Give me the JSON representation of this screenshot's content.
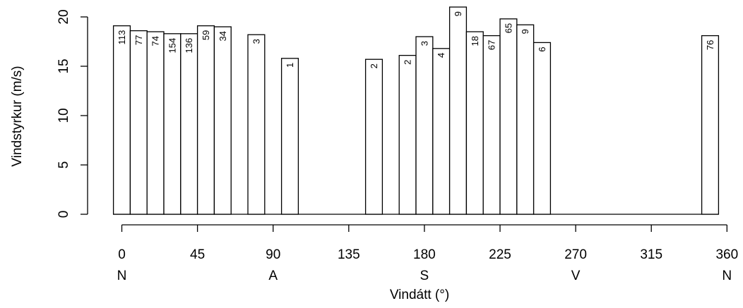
{
  "chart_data": {
    "type": "bar",
    "xlabel": "Vindátt (°)",
    "ylabel": "Vindstyrkur (m/s)",
    "xlim": [
      0,
      360
    ],
    "ylim": [
      0,
      20
    ],
    "x_ticks": [
      0,
      45,
      90,
      135,
      180,
      225,
      270,
      315,
      360
    ],
    "y_ticks": [
      0,
      5,
      10,
      15,
      20
    ],
    "direction_ticks": [
      {
        "x": 0,
        "label": "N"
      },
      {
        "x": 90,
        "label": "A"
      },
      {
        "x": 180,
        "label": "S"
      },
      {
        "x": 270,
        "label": "V"
      },
      {
        "x": 360,
        "label": "N"
      }
    ],
    "bar_width_deg": 10,
    "bars": [
      {
        "x": 0,
        "value": 19.1,
        "count": "113"
      },
      {
        "x": 10,
        "value": 18.6,
        "count": "77"
      },
      {
        "x": 20,
        "value": 18.5,
        "count": "74"
      },
      {
        "x": 30,
        "value": 18.3,
        "count": "154"
      },
      {
        "x": 40,
        "value": 18.3,
        "count": "136"
      },
      {
        "x": 50,
        "value": 19.1,
        "count": "59"
      },
      {
        "x": 60,
        "value": 19.0,
        "count": "34"
      },
      {
        "x": 80,
        "value": 18.2,
        "count": "3"
      },
      {
        "x": 100,
        "value": 15.8,
        "count": "1"
      },
      {
        "x": 150,
        "value": 15.7,
        "count": "2"
      },
      {
        "x": 170,
        "value": 16.1,
        "count": "2"
      },
      {
        "x": 180,
        "value": 18.0,
        "count": "3"
      },
      {
        "x": 190,
        "value": 16.8,
        "count": "4"
      },
      {
        "x": 200,
        "value": 21.0,
        "count": "9"
      },
      {
        "x": 210,
        "value": 18.5,
        "count": "18"
      },
      {
        "x": 220,
        "value": 18.1,
        "count": "67"
      },
      {
        "x": 230,
        "value": 19.8,
        "count": "65"
      },
      {
        "x": 240,
        "value": 19.2,
        "count": "9"
      },
      {
        "x": 250,
        "value": 17.4,
        "count": "6"
      },
      {
        "x": 350,
        "value": 18.1,
        "count": "76"
      }
    ]
  }
}
